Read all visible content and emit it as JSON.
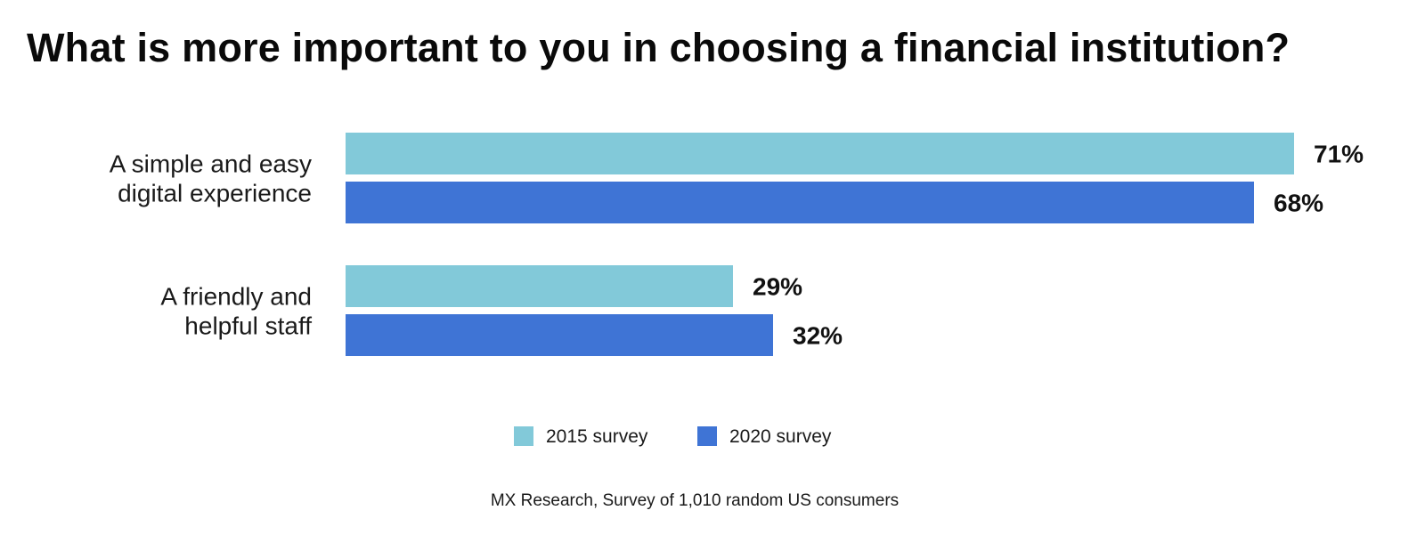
{
  "chart_data": {
    "type": "bar",
    "orientation": "horizontal",
    "title": "What is more important to you in choosing a financial institution?",
    "categories": [
      [
        "A simple and easy",
        "digital experience"
      ],
      [
        "A friendly and",
        "helpful staff"
      ]
    ],
    "series": [
      {
        "name": "2015 survey",
        "color": "#82C9D9",
        "values": [
          71,
          29
        ],
        "labels": [
          "71%",
          "29%"
        ]
      },
      {
        "name": "2020 survey",
        "color": "#3F74D5",
        "values": [
          68,
          32
        ],
        "labels": [
          "68%",
          "32%"
        ]
      }
    ],
    "xlim": [
      0,
      71
    ],
    "grid": false,
    "legend": "bottom-center",
    "source": "MX Research, Survey of 1,010 random US consumers"
  }
}
